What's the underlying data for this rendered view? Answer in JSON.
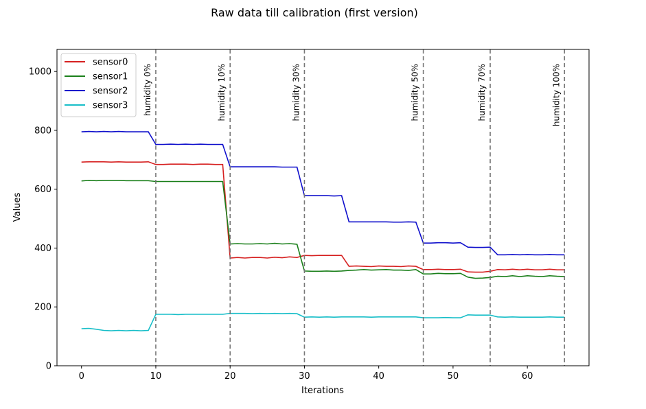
{
  "chart_data": {
    "type": "line",
    "title": "Raw data till calibration (first version)",
    "xlabel": "Iterations",
    "ylabel": "Values",
    "xlim": [
      -3.3,
      68.3
    ],
    "ylim": [
      0,
      1075
    ],
    "xticks": [
      0,
      10,
      20,
      30,
      40,
      50,
      60
    ],
    "yticks": [
      0,
      200,
      400,
      600,
      800,
      1000
    ],
    "grid": false,
    "legend": "top-left",
    "vertical_lines": [
      {
        "x": 10,
        "label": "humidity 0%"
      },
      {
        "x": 20,
        "label": "humidity 10%"
      },
      {
        "x": 30,
        "label": "humidity 30%"
      },
      {
        "x": 46,
        "label": "humidity 50%"
      },
      {
        "x": 55,
        "label": "humidity 70%"
      },
      {
        "x": 65,
        "label": "humidity 100%"
      }
    ],
    "series": [
      {
        "name": "sensor0",
        "color": "#d62020",
        "x": [
          0,
          1,
          2,
          3,
          4,
          5,
          6,
          7,
          8,
          9,
          10,
          11,
          12,
          13,
          14,
          15,
          16,
          17,
          18,
          19,
          20,
          21,
          22,
          23,
          24,
          25,
          26,
          27,
          28,
          29,
          30,
          31,
          32,
          33,
          34,
          35,
          36,
          37,
          38,
          39,
          40,
          41,
          42,
          43,
          44,
          45,
          46,
          47,
          48,
          49,
          50,
          51,
          52,
          53,
          54,
          55,
          56,
          57,
          58,
          59,
          60,
          61,
          62,
          63,
          64,
          65
        ],
        "values": [
          692,
          693,
          693,
          693,
          692,
          693,
          692,
          692,
          692,
          693,
          684,
          684,
          685,
          685,
          685,
          684,
          685,
          685,
          684,
          684,
          366,
          368,
          366,
          368,
          368,
          366,
          369,
          367,
          370,
          368,
          375,
          374,
          375,
          375,
          375,
          375,
          338,
          339,
          338,
          337,
          339,
          338,
          338,
          337,
          339,
          338,
          327,
          327,
          328,
          327,
          327,
          328,
          319,
          318,
          318,
          321,
          327,
          326,
          328,
          326,
          328,
          326,
          326,
          328,
          326,
          326
        ]
      },
      {
        "name": "sensor1",
        "color": "#1a7f1a",
        "x": [
          0,
          1,
          2,
          3,
          4,
          5,
          6,
          7,
          8,
          9,
          10,
          11,
          12,
          13,
          14,
          15,
          16,
          17,
          18,
          19,
          20,
          21,
          22,
          23,
          24,
          25,
          26,
          27,
          28,
          29,
          30,
          31,
          32,
          33,
          34,
          35,
          36,
          37,
          38,
          39,
          40,
          41,
          42,
          43,
          44,
          45,
          46,
          47,
          48,
          49,
          50,
          51,
          52,
          53,
          54,
          55,
          56,
          57,
          58,
          59,
          60,
          61,
          62,
          63,
          64,
          65
        ],
        "values": [
          628,
          630,
          629,
          630,
          630,
          630,
          629,
          629,
          629,
          629,
          626,
          626,
          626,
          626,
          626,
          626,
          626,
          626,
          626,
          626,
          414,
          415,
          414,
          414,
          415,
          414,
          416,
          414,
          415,
          413,
          322,
          321,
          321,
          322,
          321,
          322,
          324,
          325,
          327,
          325,
          326,
          327,
          325,
          325,
          324,
          327,
          312,
          312,
          314,
          313,
          313,
          314,
          301,
          297,
          298,
          300,
          304,
          303,
          306,
          303,
          306,
          304,
          303,
          306,
          304,
          303
        ]
      },
      {
        "name": "sensor2",
        "color": "#1010cc",
        "x": [
          0,
          1,
          2,
          3,
          4,
          5,
          6,
          7,
          8,
          9,
          10,
          11,
          12,
          13,
          14,
          15,
          16,
          17,
          18,
          19,
          20,
          21,
          22,
          23,
          24,
          25,
          26,
          27,
          28,
          29,
          30,
          31,
          32,
          33,
          34,
          35,
          36,
          37,
          38,
          39,
          40,
          41,
          42,
          43,
          44,
          45,
          46,
          47,
          48,
          49,
          50,
          51,
          52,
          53,
          54,
          55,
          56,
          57,
          58,
          59,
          60,
          61,
          62,
          63,
          64,
          65
        ],
        "values": [
          795,
          796,
          795,
          796,
          795,
          796,
          795,
          795,
          795,
          795,
          752,
          752,
          753,
          752,
          753,
          752,
          753,
          752,
          752,
          752,
          676,
          676,
          676,
          676,
          676,
          676,
          676,
          675,
          675,
          675,
          578,
          578,
          578,
          578,
          577,
          578,
          489,
          489,
          489,
          489,
          489,
          489,
          488,
          488,
          489,
          488,
          417,
          417,
          418,
          418,
          417,
          418,
          403,
          402,
          402,
          403,
          377,
          377,
          378,
          377,
          378,
          377,
          377,
          378,
          377,
          377
        ]
      },
      {
        "name": "sensor3",
        "color": "#17bec8",
        "x": [
          0,
          1,
          2,
          3,
          4,
          5,
          6,
          7,
          8,
          9,
          10,
          11,
          12,
          13,
          14,
          15,
          16,
          17,
          18,
          19,
          20,
          21,
          22,
          23,
          24,
          25,
          26,
          27,
          28,
          29,
          30,
          31,
          32,
          33,
          34,
          35,
          36,
          37,
          38,
          39,
          40,
          41,
          42,
          43,
          44,
          45,
          46,
          47,
          48,
          49,
          50,
          51,
          52,
          53,
          54,
          55,
          56,
          57,
          58,
          59,
          60,
          61,
          62,
          63,
          64,
          65
        ],
        "values": [
          126,
          127,
          124,
          120,
          119,
          120,
          119,
          120,
          119,
          120,
          175,
          175,
          175,
          174,
          175,
          175,
          175,
          175,
          175,
          175,
          178,
          178,
          178,
          177,
          178,
          177,
          178,
          177,
          178,
          177,
          165,
          166,
          165,
          166,
          165,
          166,
          166,
          166,
          166,
          165,
          166,
          166,
          166,
          166,
          166,
          166,
          163,
          163,
          163,
          164,
          163,
          163,
          173,
          172,
          172,
          172,
          166,
          165,
          166,
          165,
          165,
          165,
          165,
          166,
          165,
          165
        ]
      }
    ]
  }
}
